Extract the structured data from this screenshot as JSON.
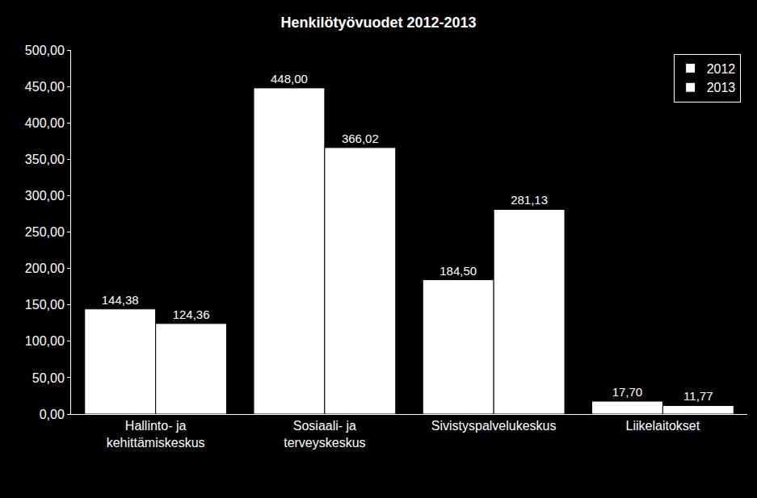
{
  "chart_data": {
    "type": "bar",
    "title": "Henkilötyövuodet 2012-2013",
    "categories": [
      "Hallinto- ja\nkehittämiskeskus",
      "Sosiaali- ja\nterveyskeskus",
      "Sivistyspalvelukeskus",
      "Liikelaitokset"
    ],
    "series": [
      {
        "name": "2012",
        "color": "#ffffff",
        "values": [
          144.38,
          448.0,
          184.5,
          17.7
        ],
        "value_labels": [
          "144,38",
          "448,00",
          "184,50",
          "17,70"
        ]
      },
      {
        "name": "2013",
        "color": "#ffffff",
        "values": [
          124.36,
          366.02,
          281.13,
          11.77
        ],
        "value_labels": [
          "124,36",
          "366,02",
          "281,13",
          "11,77"
        ]
      }
    ],
    "ylim": [
      0,
      500
    ],
    "yticks": [
      {
        "value": 0,
        "label": "0,00"
      },
      {
        "value": 50,
        "label": "50,00"
      },
      {
        "value": 100,
        "label": "100,00"
      },
      {
        "value": 150,
        "label": "150,00"
      },
      {
        "value": 200,
        "label": "200,00"
      },
      {
        "value": 250,
        "label": "250,00"
      },
      {
        "value": 300,
        "label": "300,00"
      },
      {
        "value": 350,
        "label": "350,00"
      },
      {
        "value": 400,
        "label": "400,00"
      },
      {
        "value": 450,
        "label": "450,00"
      },
      {
        "value": 500,
        "label": "500,00"
      }
    ],
    "grid": false,
    "legend": "top right",
    "data_labels": true
  }
}
